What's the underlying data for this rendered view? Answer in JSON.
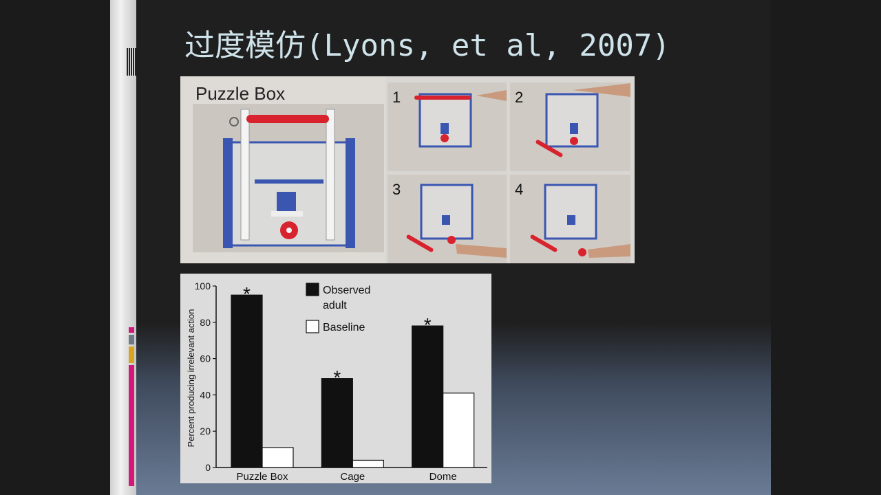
{
  "slide": {
    "title": "过度模仿(Lyons, et al, 2007)"
  },
  "photo": {
    "heading": "Puzzle Box",
    "step_labels": [
      "1",
      "2",
      "3",
      "4"
    ]
  },
  "colors": {
    "rail_pink": "#d4187a",
    "rail_gray": "#6e7a88",
    "rail_gold": "#d9a521",
    "box_blue": "#3a56b0",
    "rod_red": "#d8232f"
  },
  "chart_data": {
    "type": "bar",
    "categories": [
      "Puzzle Box",
      "Cage",
      "Dome"
    ],
    "series": [
      {
        "name": "Observed adult",
        "values": [
          95,
          49,
          78
        ]
      },
      {
        "name": "Baseline",
        "values": [
          11,
          4,
          41
        ]
      }
    ],
    "ylabel": "Percent producing irrelevant action",
    "ylim": [
      0,
      100
    ],
    "yticks": [
      0,
      20,
      40,
      60,
      80,
      100
    ],
    "significance": [
      "*",
      "*",
      "*"
    ],
    "legend": {
      "placement": "top-center",
      "entries": [
        {
          "label_lines": [
            "Observed",
            "adult"
          ],
          "fill": "#111111"
        },
        {
          "label_lines": [
            "Baseline"
          ],
          "fill": "#ffffff"
        }
      ]
    },
    "grid": false
  }
}
